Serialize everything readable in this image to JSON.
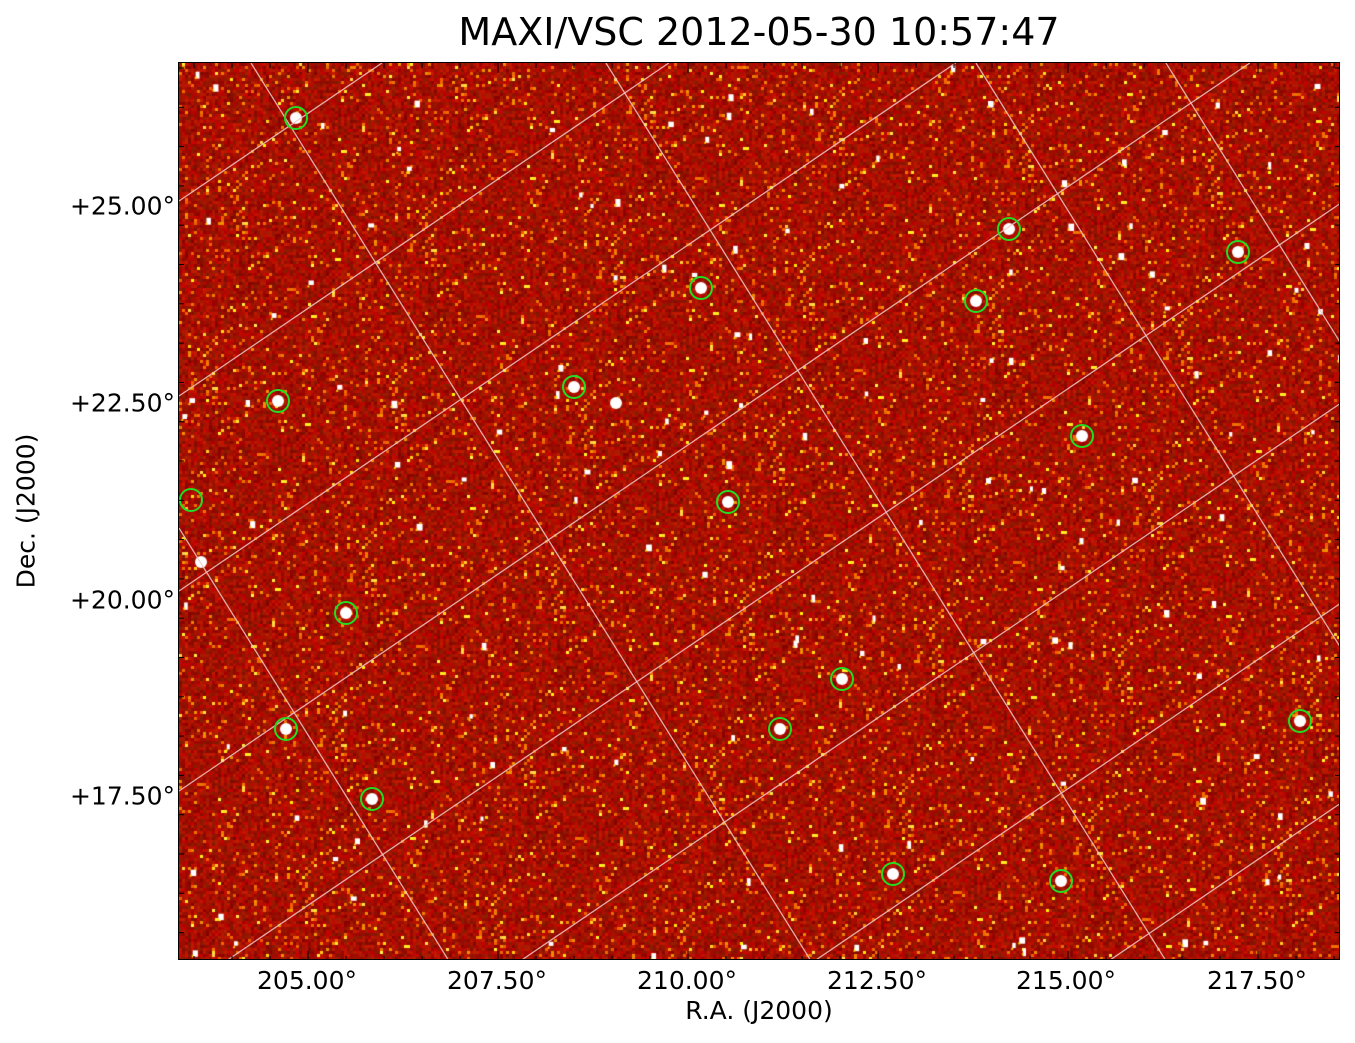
{
  "title": "MAXI/VSC 2012-05-30 10:57:47",
  "x_axis": {
    "label": "R.A. (J2000)",
    "ticks": [
      "205.00°",
      "207.50°",
      "210.00°",
      "212.50°",
      "215.00°",
      "217.50°"
    ]
  },
  "y_axis": {
    "label": "Dec. (J2000)",
    "ticks": [
      "+25.00°",
      "+22.50°",
      "+20.00°",
      "+17.50°"
    ]
  },
  "colormap": "heat (dark red to white)",
  "colors": {
    "marker": "#22dd22",
    "grid": "#f0c8c8",
    "background": "#b01000"
  },
  "marker_count": 18
}
